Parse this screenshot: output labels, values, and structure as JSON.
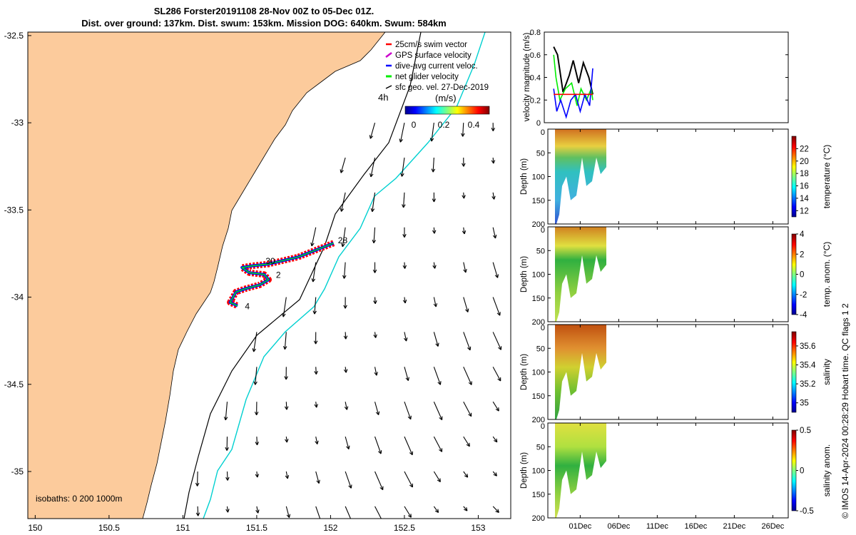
{
  "title": {
    "line1": "SL286 Forster20191108 28-Nov 00Z to 05-Dec 01Z.",
    "line2": "Dist. over ground: 137km. Dist. swum: 153km. Mission DOG: 640km. Swum: 584km"
  },
  "credit": "© IMOS 14-Apr-2024 00:28:29 Hobart time. QC flags 1  2",
  "colors": {
    "land": "#fccb9c",
    "swim_vector": "#ff0000",
    "gps_velocity": "#cc00cc",
    "dive_avg_current": "#0000ff",
    "net_glider": "#00ee00",
    "sfc_geo": "#000000",
    "isobath_200": "#000000",
    "isobath_1000": "#00d0d0"
  },
  "chart_data": [
    {
      "id": "map",
      "type": "scatter",
      "description_labels": {
        "xticks": [
          "150",
          "150.5",
          "151",
          "151.5",
          "152",
          "152.5",
          "153"
        ],
        "yticks": [
          "-32.5",
          "-33",
          "-33.5",
          "-34",
          "-34.5",
          "-35"
        ]
      },
      "xlim": [
        149.95,
        153.22
      ],
      "ylim": [
        -35.27,
        -32.48
      ],
      "xtick_values": [
        150,
        150.5,
        151,
        151.5,
        152,
        152.5,
        153
      ],
      "ytick_values": [
        -32.5,
        -33,
        -33.5,
        -34,
        -34.5,
        -35
      ],
      "legend": [
        "25cm/s swim vector",
        "GPS surface velocity",
        "dive-avg current veloc.",
        "net glider velocity",
        "sfc geo. vel. 27-Dec-2019"
      ],
      "legend_placement": "top-right",
      "colorbar": {
        "label": "(m/s)",
        "ticks": [
          "0",
          "0.2",
          "0.4"
        ],
        "range": [
          0,
          0.5
        ]
      },
      "isobaths_label": "isobaths: 0   200  1000m",
      "day_labels": [
        {
          "text": "28",
          "lon": 152.05,
          "lat": -33.69
        },
        {
          "text": "30",
          "lon": 151.56,
          "lat": -33.81
        },
        {
          "text": "2",
          "lon": 151.63,
          "lat": -33.89
        },
        {
          "text": "4",
          "lon": 151.42,
          "lat": -34.07
        }
      ],
      "track": [
        [
          152.02,
          -33.69
        ],
        [
          151.9,
          -33.73
        ],
        [
          151.78,
          -33.77
        ],
        [
          151.68,
          -33.79
        ],
        [
          151.58,
          -33.81
        ],
        [
          151.47,
          -33.82
        ],
        [
          151.4,
          -33.83
        ],
        [
          151.45,
          -33.86
        ],
        [
          151.55,
          -33.87
        ],
        [
          151.58,
          -33.9
        ],
        [
          151.52,
          -33.93
        ],
        [
          151.43,
          -33.95
        ],
        [
          151.36,
          -33.97
        ],
        [
          151.32,
          -34.03
        ],
        [
          151.37,
          -34.05
        ]
      ]
    },
    {
      "id": "velocity",
      "type": "line",
      "ylabel": "velocity magnitude (m/s)",
      "ylim": [
        0,
        0.8
      ],
      "yticks": [
        "0",
        "0.2",
        "0.4",
        "0.6",
        "0.8"
      ],
      "xlim_days": [
        -1.2,
        30
      ],
      "series": [
        {
          "color": "#000000",
          "x": [
            0,
            0.5,
            1.2,
            2,
            2.5,
            3.2,
            3.8,
            4.5,
            5
          ],
          "values": [
            0.67,
            0.6,
            0.27,
            0.42,
            0.55,
            0.35,
            0.53,
            0.4,
            0.25
          ]
        },
        {
          "color": "#00ee00",
          "x": [
            0,
            0.3,
            0.8,
            1.5,
            2.3,
            3,
            3.5,
            4.2,
            4.8,
            5
          ],
          "values": [
            0.6,
            0.4,
            0.2,
            0.3,
            0.35,
            0.15,
            0.3,
            0.2,
            0.3,
            0.2
          ]
        },
        {
          "color": "#0000ff",
          "x": [
            0,
            0.4,
            0.9,
            1.6,
            2.2,
            2.8,
            3.4,
            4,
            4.6,
            5
          ],
          "values": [
            0.3,
            0.1,
            0.2,
            0.05,
            0.2,
            0.25,
            0.1,
            0.25,
            0.15,
            0.48
          ]
        },
        {
          "color": "#ff0000",
          "x": [
            0,
            5
          ],
          "values": [
            0.25,
            0.25
          ]
        }
      ]
    },
    {
      "id": "temperature",
      "type": "heatmap",
      "ylabel": "Depth (m)",
      "colorbar_label": "temperature (°C)",
      "colorbar_ticks": [
        "12",
        "14",
        "16",
        "18",
        "20",
        "22"
      ],
      "range": [
        11,
        24
      ],
      "yticks": [
        "0",
        "50",
        "100",
        "150",
        "200"
      ]
    },
    {
      "id": "temp_anom",
      "type": "heatmap",
      "ylabel": "Depth (m)",
      "colorbar_label": "temp. anom. (°C)",
      "colorbar_ticks": [
        "-4",
        "-2",
        "0",
        "2",
        "4"
      ],
      "range": [
        -4,
        4
      ],
      "yticks": [
        "0",
        "50",
        "100",
        "150",
        "200"
      ]
    },
    {
      "id": "salinity",
      "type": "heatmap",
      "ylabel": "Depth (m)",
      "colorbar_label": "salinity",
      "colorbar_ticks": [
        "35",
        "35.2",
        "35.4",
        "35.6"
      ],
      "range": [
        34.9,
        35.75
      ],
      "yticks": [
        "0",
        "50",
        "100",
        "150",
        "200"
      ]
    },
    {
      "id": "sal_anom",
      "type": "heatmap",
      "ylabel": "Depth (m)",
      "colorbar_label": "salinity anom.",
      "colorbar_ticks": [
        "-0.5",
        "0",
        "0.5"
      ],
      "range": [
        -0.5,
        0.5
      ],
      "yticks": [
        "0",
        "50",
        "100",
        "150",
        "200"
      ],
      "xticks": [
        "01Dec",
        "06Dec",
        "11Dec",
        "16Dec",
        "21Dec",
        "26Dec"
      ],
      "xtick_days": [
        3,
        8,
        13,
        18,
        23,
        28
      ]
    }
  ]
}
